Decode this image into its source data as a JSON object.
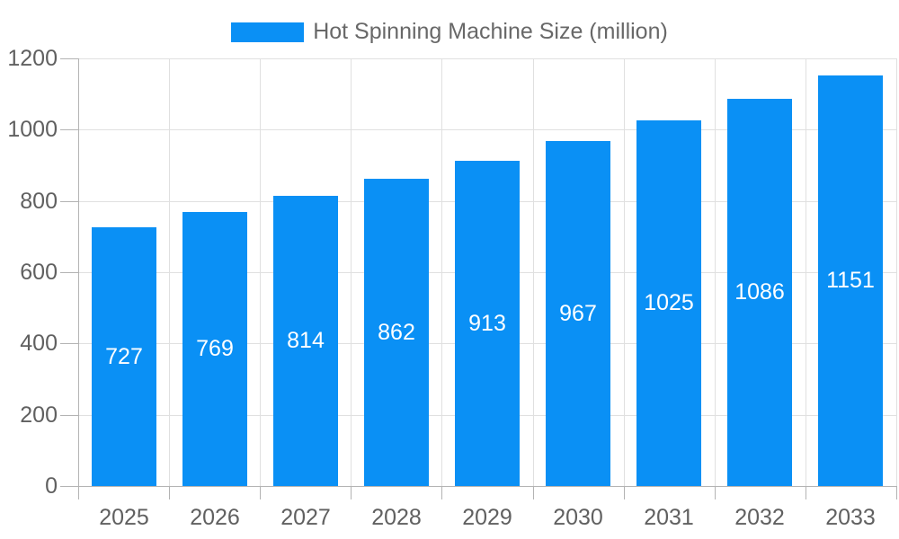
{
  "chart_data": {
    "type": "bar",
    "legend_label": "Hot Spinning Machine Size (million)",
    "legend_position": "top",
    "categories": [
      "2025",
      "2026",
      "2027",
      "2028",
      "2029",
      "2030",
      "2031",
      "2032",
      "2033"
    ],
    "values": [
      727,
      769,
      814,
      862,
      913,
      967,
      1025,
      1086,
      1151
    ],
    "xlabel": "",
    "ylabel": "",
    "ylim": [
      0,
      1200
    ],
    "yticks": [
      0,
      200,
      400,
      600,
      800,
      1000,
      1200
    ],
    "grid": true,
    "bar_color": "#0a90f5",
    "value_label_color": "#ffffff",
    "axis_color": "#b3b3b3",
    "gridline_color": "#e0e0e0",
    "tick_text_color": "#606060",
    "legend_text_color": "#686868",
    "background_color": "#ffffff"
  }
}
